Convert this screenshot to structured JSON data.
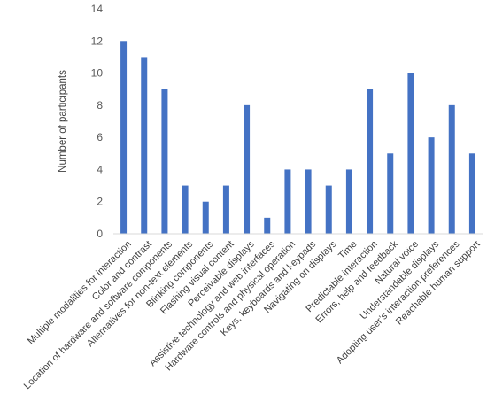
{
  "chart_data": {
    "type": "bar",
    "ylabel": "Number of participants",
    "xlabel": "",
    "ylim": [
      0,
      14
    ],
    "yticks": [
      0,
      2,
      4,
      6,
      8,
      10,
      12,
      14
    ],
    "grid": false,
    "bar_color": "#4472c4",
    "categories": [
      "Multiple modalities for interaction",
      "Color and contrast",
      "Location of hardware and software components",
      "Alternatives for non-text elements",
      "Blinking components",
      "Flashing visual content",
      "Perceivable displays",
      "Assistive technology and web interfaces",
      "Hardware controls and physical operation",
      "Keys, keyboards and keypads",
      "Navigating on displays",
      "Time",
      "Predictable interaction",
      "Errors, help and feedback",
      "Natural voice",
      "Understandable displays",
      "Adopting user’s interaction preferences",
      "Reachable human support"
    ],
    "values": [
      12,
      11,
      9,
      3,
      2,
      3,
      8,
      1,
      4,
      4,
      3,
      4,
      9,
      5,
      10,
      6,
      8,
      5
    ]
  }
}
